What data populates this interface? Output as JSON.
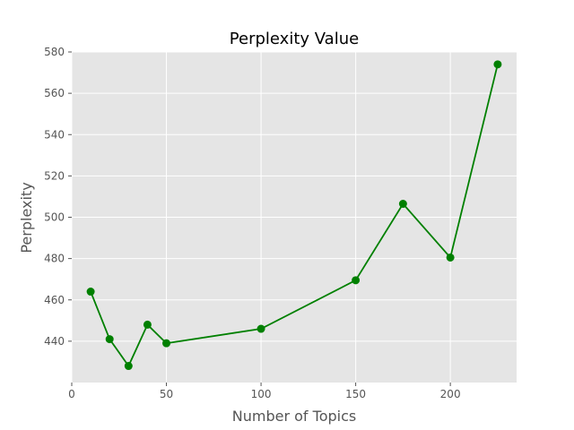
{
  "chart_data": {
    "type": "line",
    "title": "Perplexity Value",
    "xlabel": "Number of Topics",
    "ylabel": "Perplexity",
    "xlim": [
      0,
      235
    ],
    "ylim": [
      420,
      580
    ],
    "xticks": [
      0,
      50,
      100,
      150,
      200
    ],
    "yticks": [
      440,
      460,
      480,
      500,
      520,
      540,
      560,
      580
    ],
    "grid": true,
    "series": [
      {
        "name": "Perplexity",
        "color": "#008000",
        "x": [
          10,
          20,
          30,
          40,
          50,
          100,
          150,
          175,
          200,
          225
        ],
        "y": [
          464,
          441,
          428,
          448,
          439,
          446,
          469.5,
          506.5,
          480.5,
          574
        ]
      }
    ]
  }
}
